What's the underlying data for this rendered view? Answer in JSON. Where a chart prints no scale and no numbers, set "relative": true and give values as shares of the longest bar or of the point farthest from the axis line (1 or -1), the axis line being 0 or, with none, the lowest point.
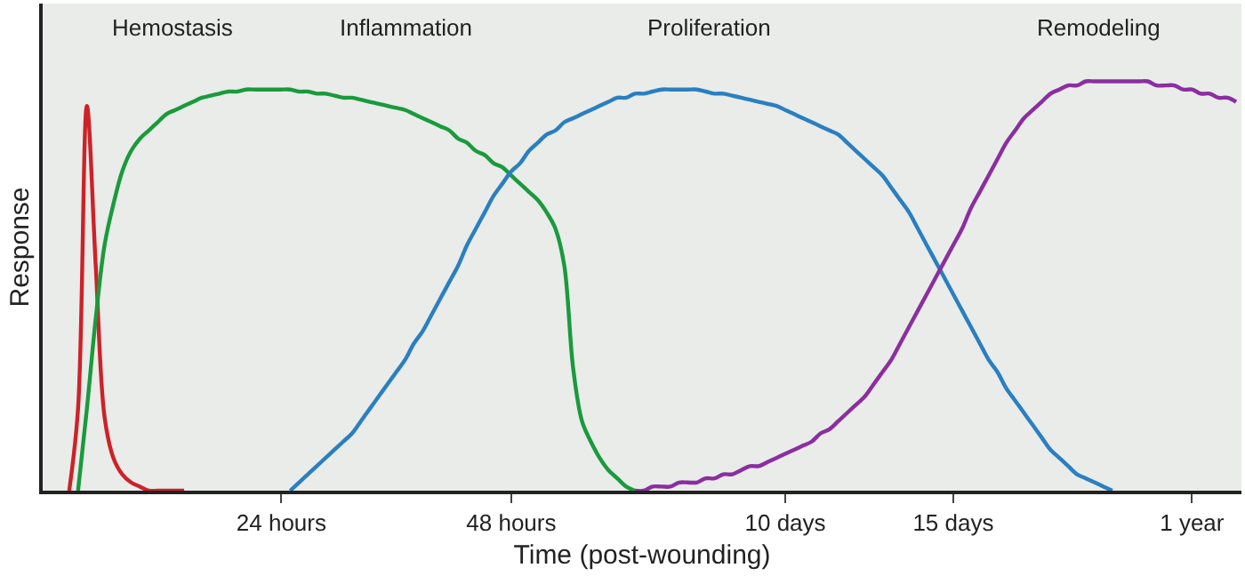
{
  "chart_data": {
    "type": "line",
    "relative": true,
    "xlabel": "Time (post-wounding)",
    "ylabel": "Response",
    "grid": false,
    "marker": "none",
    "line_style": "solid",
    "annotations": [
      "Hemostasis",
      "Inflammation",
      "Proliferation",
      "Remodeling"
    ],
    "categories": [
      null,
      null,
      null,
      null,
      null,
      null,
      null,
      null,
      null,
      null,
      null,
      null,
      null,
      null,
      null,
      null,
      null,
      null,
      null,
      null,
      null,
      null,
      null,
      null,
      null,
      null,
      null,
      "24 hours",
      null,
      null,
      null,
      null,
      null,
      null,
      null,
      null,
      null,
      null,
      null,
      null,
      null,
      null,
      null,
      null,
      null,
      null,
      null,
      null,
      null,
      null,
      null,
      null,
      null,
      "48 hours",
      null,
      null,
      null,
      null,
      null,
      null,
      null,
      null,
      null,
      null,
      null,
      null,
      null,
      null,
      null,
      null,
      null,
      null,
      null,
      null,
      null,
      null,
      null,
      null,
      null,
      null,
      null,
      null,
      null,
      null,
      "10 days",
      null,
      null,
      null,
      null,
      null,
      null,
      null,
      null,
      null,
      null,
      null,
      null,
      null,
      null,
      null,
      null,
      null,
      null,
      "15 days",
      null,
      null,
      null,
      null,
      null,
      null,
      null,
      null,
      null,
      null,
      null,
      null,
      null,
      null,
      null,
      null,
      null,
      null,
      null,
      null,
      null,
      null,
      null,
      null,
      null,
      null,
      "1 year",
      null,
      null,
      null,
      null,
      null
    ],
    "series": [
      {
        "color": "#cc2229",
        "values": [
          null,
          null,
          null,
          0,
          0.2,
          0.94,
          0.55,
          0.18,
          0.08,
          0.04,
          0.02,
          0.01,
          0,
          0,
          0,
          0,
          0,
          null,
          null,
          null,
          null,
          null,
          null,
          null,
          null,
          null,
          null,
          null,
          null,
          null,
          null,
          null,
          null,
          null,
          null,
          null,
          null,
          null,
          null,
          null,
          null,
          null,
          null,
          null,
          null,
          null,
          null,
          null,
          null,
          null,
          null,
          null,
          null,
          null,
          null,
          null,
          null,
          null,
          null,
          null,
          null,
          null,
          null,
          null,
          null,
          null,
          null,
          null,
          null,
          null,
          null,
          null,
          null,
          null,
          null,
          null,
          null,
          null,
          null,
          null,
          null,
          null,
          null,
          null,
          null,
          null,
          null,
          null,
          null,
          null,
          null,
          null,
          null,
          null,
          null,
          null,
          null,
          null,
          null,
          null,
          null,
          null,
          null,
          null,
          null,
          null,
          null,
          null,
          null,
          null,
          null,
          null,
          null,
          null,
          null,
          null,
          null,
          null,
          null,
          null,
          null,
          null,
          null,
          null,
          null,
          null,
          null,
          null,
          null,
          null,
          null,
          null,
          null,
          null,
          null,
          null
        ]
      },
      {
        "color": "#1a9a3c",
        "values": [
          null,
          null,
          null,
          null,
          0,
          0.2,
          0.42,
          0.6,
          0.7,
          0.78,
          0.83,
          0.86,
          0.88,
          0.9,
          0.92,
          0.93,
          0.94,
          0.95,
          0.96,
          0.965,
          0.97,
          0.975,
          0.975,
          0.98,
          0.98,
          0.98,
          0.98,
          0.98,
          0.98,
          0.975,
          0.975,
          0.97,
          0.97,
          0.965,
          0.96,
          0.96,
          0.955,
          0.95,
          0.945,
          0.94,
          0.935,
          0.93,
          0.92,
          0.91,
          0.9,
          0.89,
          0.88,
          0.86,
          0.85,
          0.83,
          0.82,
          0.8,
          0.79,
          0.77,
          0.75,
          0.73,
          0.71,
          0.68,
          0.64,
          0.55,
          0.3,
          0.17,
          0.12,
          0.08,
          0.05,
          0.03,
          0.01,
          0,
          null,
          null,
          null,
          null,
          null,
          null,
          null,
          null,
          null,
          null,
          null,
          null,
          null,
          null,
          null,
          null,
          null,
          null,
          null,
          null,
          null,
          null,
          null,
          null,
          null,
          null,
          null,
          null,
          null,
          null,
          null,
          null,
          null,
          null,
          null,
          null,
          null,
          null,
          null,
          null,
          null,
          null,
          null,
          null,
          null,
          null,
          null,
          null,
          null,
          null,
          null,
          null,
          null,
          null,
          null,
          null,
          null,
          null,
          null,
          null,
          null,
          null,
          null,
          null,
          null,
          null,
          null,
          null
        ]
      },
      {
        "color": "#2a7fc1",
        "values": [
          null,
          null,
          null,
          null,
          null,
          null,
          null,
          null,
          null,
          null,
          null,
          null,
          null,
          null,
          null,
          null,
          null,
          null,
          null,
          null,
          null,
          null,
          null,
          null,
          null,
          null,
          null,
          null,
          0,
          0.02,
          0.04,
          0.06,
          0.08,
          0.1,
          0.12,
          0.14,
          0.17,
          0.2,
          0.23,
          0.26,
          0.29,
          0.32,
          0.36,
          0.39,
          0.43,
          0.47,
          0.51,
          0.55,
          0.6,
          0.64,
          0.68,
          0.72,
          0.75,
          0.78,
          0.8,
          0.83,
          0.85,
          0.87,
          0.88,
          0.9,
          0.91,
          0.92,
          0.93,
          0.94,
          0.95,
          0.96,
          0.96,
          0.97,
          0.97,
          0.975,
          0.98,
          0.98,
          0.98,
          0.98,
          0.98,
          0.975,
          0.97,
          0.97,
          0.965,
          0.96,
          0.955,
          0.95,
          0.945,
          0.94,
          0.93,
          0.92,
          0.91,
          0.9,
          0.89,
          0.88,
          0.87,
          0.85,
          0.83,
          0.81,
          0.79,
          0.77,
          0.74,
          0.71,
          0.68,
          0.64,
          0.6,
          0.56,
          0.52,
          0.48,
          0.44,
          0.4,
          0.36,
          0.32,
          0.29,
          0.25,
          0.22,
          0.19,
          0.16,
          0.13,
          0.1,
          0.08,
          0.06,
          0.04,
          0.03,
          0.02,
          0.01,
          0,
          null,
          null,
          null,
          null,
          null,
          null,
          null,
          null,
          null,
          null,
          null,
          null,
          null,
          null
        ]
      },
      {
        "color": "#8b2ea0",
        "values": [
          null,
          null,
          null,
          null,
          null,
          null,
          null,
          null,
          null,
          null,
          null,
          null,
          null,
          null,
          null,
          null,
          null,
          null,
          null,
          null,
          null,
          null,
          null,
          null,
          null,
          null,
          null,
          null,
          null,
          null,
          null,
          null,
          null,
          null,
          null,
          null,
          null,
          null,
          null,
          null,
          null,
          null,
          null,
          null,
          null,
          null,
          null,
          null,
          null,
          null,
          null,
          null,
          null,
          null,
          null,
          null,
          null,
          null,
          null,
          null,
          null,
          null,
          null,
          null,
          null,
          null,
          null,
          0,
          0,
          0.01,
          0.01,
          0.01,
          0.02,
          0.02,
          0.02,
          0.03,
          0.03,
          0.04,
          0.04,
          0.05,
          0.06,
          0.06,
          0.07,
          0.08,
          0.09,
          0.1,
          0.11,
          0.12,
          0.14,
          0.15,
          0.17,
          0.19,
          0.21,
          0.23,
          0.26,
          0.29,
          0.32,
          0.36,
          0.4,
          0.44,
          0.48,
          0.52,
          0.56,
          0.6,
          0.64,
          0.69,
          0.73,
          0.77,
          0.81,
          0.85,
          0.88,
          0.91,
          0.93,
          0.95,
          0.97,
          0.98,
          0.99,
          0.99,
          1,
          1,
          1,
          1,
          1,
          1,
          1,
          1,
          0.99,
          0.99,
          0.99,
          0.98,
          0.98,
          0.97,
          0.97,
          0.96,
          0.96,
          0.95
        ]
      }
    ]
  }
}
